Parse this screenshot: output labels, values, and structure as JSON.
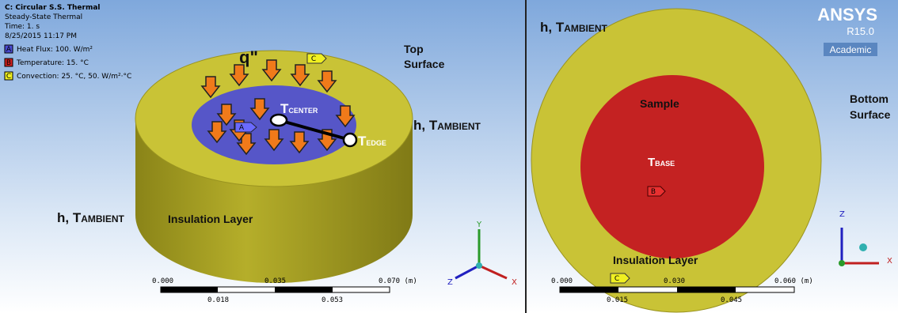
{
  "left_panel": {
    "header": [
      "C: Circular S.S. Thermal",
      "Steady-State Thermal",
      "Time: 1. s",
      "8/25/2015 11:17 PM"
    ],
    "legend": [
      {
        "letter": "A",
        "text": "Heat Flux: 100. W/m²"
      },
      {
        "letter": "B",
        "text": "Temperature: 15. °C"
      },
      {
        "letter": "C",
        "text": "Convection: 25. °C, 50. W/m²·°C"
      }
    ],
    "labels": {
      "q": "q\"",
      "top_surface": [
        "Top",
        "Surface"
      ],
      "h_right": {
        "main": "h, T",
        "sub": "AMBIENT"
      },
      "h_left": {
        "main": "h, T",
        "sub": "AMBIENT"
      },
      "insulation": "Insulation Layer",
      "t_center": {
        "main": "T",
        "sub": "CENTER"
      },
      "t_edge": {
        "main": "T",
        "sub": "EDGE"
      }
    },
    "markers": {
      "a": "A",
      "c": "C"
    },
    "triad": {
      "y": "Y",
      "z": "Z",
      "x": "X"
    },
    "scale": {
      "top": [
        "0.000",
        "0.035",
        "0.070 (m)"
      ],
      "bottom": [
        "0.018",
        "0.053"
      ]
    }
  },
  "right_panel": {
    "logo": {
      "name": "ANSYS",
      "release": "R15.0",
      "edition": "Academic"
    },
    "labels": {
      "h_top": {
        "main": "h, T",
        "sub": "AMBIENT"
      },
      "sample": "Sample",
      "bottom_surface": [
        "Bottom",
        "Surface"
      ],
      "t_base": {
        "main": "T",
        "sub": "BASE"
      },
      "insulation": "Insulation Layer"
    },
    "markers": {
      "b": "B",
      "c": "C"
    },
    "triad": {
      "z": "Z",
      "x": "X"
    },
    "scale": {
      "top": [
        "0.000",
        "0.030",
        "0.060 (m)"
      ],
      "bottom": [
        "0.015",
        "0.045"
      ]
    }
  }
}
